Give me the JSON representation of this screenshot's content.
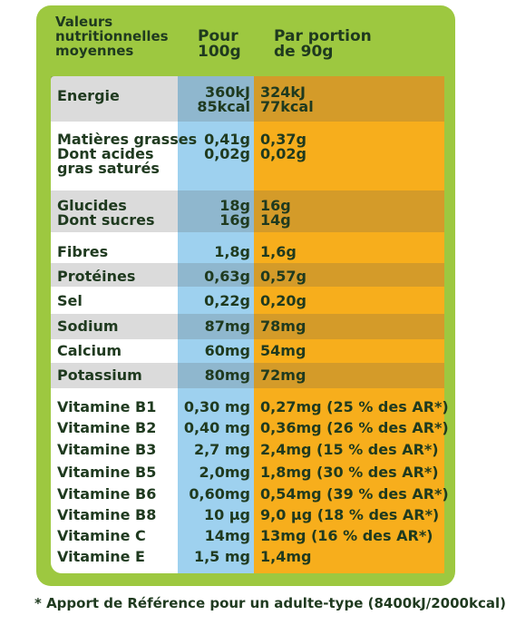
{
  "header": {
    "label_lines": [
      "Valeurs",
      "nutritionnelles",
      "moyennes"
    ],
    "per100_lines": [
      "Pour",
      "100g"
    ],
    "portion_lines": [
      "Par portion",
      "de 90g"
    ]
  },
  "rows": [
    {
      "label": [
        "Energie"
      ],
      "per100": [
        "360kJ",
        "85kcal"
      ],
      "portion": [
        "324kJ",
        "77kcal"
      ]
    },
    {
      "label": [
        "Matières grasses",
        "Dont acides",
        "gras saturés"
      ],
      "per100": [
        "0,41g",
        "0,02g"
      ],
      "portion": [
        "0,37g",
        "0,02g"
      ]
    },
    {
      "label": [
        "Glucides",
        "Dont sucres"
      ],
      "per100": [
        "18g",
        "16g"
      ],
      "portion": [
        "16g",
        "14g"
      ]
    },
    {
      "label": [
        "Fibres"
      ],
      "per100": [
        "1,8g"
      ],
      "portion": [
        "1,6g"
      ]
    },
    {
      "label": [
        "Protéines"
      ],
      "per100": [
        "0,63g"
      ],
      "portion": [
        "0,57g"
      ]
    },
    {
      "label": [
        "Sel"
      ],
      "per100": [
        "0,22g"
      ],
      "portion": [
        "0,20g"
      ]
    },
    {
      "label": [
        "Sodium"
      ],
      "per100": [
        "87mg"
      ],
      "portion": [
        "78mg"
      ]
    },
    {
      "label": [
        "Calcium"
      ],
      "per100": [
        "60mg"
      ],
      "portion": [
        "54mg"
      ]
    },
    {
      "label": [
        "Potassium"
      ],
      "per100": [
        "80mg"
      ],
      "portion": [
        "72mg"
      ]
    },
    {
      "label": [
        "Vitamine B1"
      ],
      "per100": [
        "0,30 mg"
      ],
      "portion": [
        "0,27mg (25 % des AR*)"
      ]
    },
    {
      "label": [
        "Vitamine B2"
      ],
      "per100": [
        "0,40 mg"
      ],
      "portion": [
        "0,36mg (26 % des AR*)"
      ]
    },
    {
      "label": [
        "Vitamine B3"
      ],
      "per100": [
        "2,7 mg"
      ],
      "portion": [
        "2,4mg (15 % des AR*)"
      ]
    },
    {
      "label": [
        "Vitamine B5"
      ],
      "per100": [
        "2,0mg"
      ],
      "portion": [
        "1,8mg (30 % des AR*)"
      ]
    },
    {
      "label": [
        "Vitamine B6"
      ],
      "per100": [
        "0,60mg"
      ],
      "portion": [
        "0,54mg (39 % des AR*)"
      ]
    },
    {
      "label": [
        "Vitamine B8"
      ],
      "per100": [
        "10 µg"
      ],
      "portion": [
        "9,0 µg (18 % des AR*)"
      ]
    },
    {
      "label": [
        "Vitamine C"
      ],
      "per100": [
        "14mg"
      ],
      "portion": [
        "13mg (16 % des AR*)"
      ]
    },
    {
      "label": [
        "Vitamine E"
      ],
      "per100": [
        "1,5 mg"
      ],
      "portion": [
        "1,4mg"
      ]
    }
  ],
  "footnote": "* Apport de Référence pour un adulte-type (8400kJ/2000kcal)",
  "colors": {
    "frame": "#9dc840",
    "per100_column": "#9ed1ef",
    "portion_column": "#f7ae1c",
    "text": "#1f3a1f"
  }
}
